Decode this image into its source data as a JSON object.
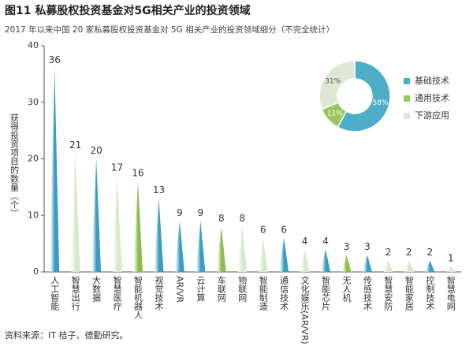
{
  "chart_data": [
    {
      "type": "bar",
      "title": "图11 私募股权投资基金对5G相关产业的投资领域",
      "subtitle": "2017 年以来中国 20 家私募股权投资基金对 5G 相关产业的投资领域细分（不完全统计）",
      "y_label": "获得投资项目的数量（个）",
      "source": "资料来源：IT 桔子、德勤研究。",
      "categories": [
        "人工智能",
        "智慧出行",
        "大数据",
        "智慧医疗",
        "智能机器人",
        "视觉技术",
        "AR/VR",
        "云计算",
        "车联网",
        "物联网",
        "智能制造",
        "通信技术",
        "文化娱乐(AR/VR)",
        "智能芯片",
        "无人机",
        "传感技术",
        "智慧安防",
        "智能家居",
        "控制技术",
        "智慧电网"
      ],
      "values": [
        36,
        21,
        20,
        17,
        16,
        13,
        9,
        9,
        8,
        8,
        6,
        6,
        4,
        4,
        3,
        3,
        2,
        2,
        2,
        1
      ],
      "colors": [
        "#3a9dc0",
        "#d9e8cc",
        "#3a9dc0",
        "#d9e8cc",
        "#8dbb4e",
        "#3a9dc0",
        "#3a9dc0",
        "#3a9dc0",
        "#8dbb4e",
        "#d9e8cc",
        "#d9e8cc",
        "#3a9dc0",
        "#d9e8cc",
        "#3a9dc0",
        "#8dbb4e",
        "#3a9dc0",
        "#d9e8cc",
        "#d9e8cc",
        "#3a9dc0",
        "#d9e8cc"
      ],
      "ylim": [
        0,
        40
      ],
      "yticks": [
        0,
        10,
        20,
        30,
        40
      ]
    },
    {
      "type": "pie",
      "categories": [
        "基础技术",
        "通用技术",
        "下游应用"
      ],
      "values": [
        58,
        11,
        31
      ],
      "value_labels": [
        "58%",
        "11%",
        "31%"
      ],
      "colors": [
        "#4eadc9",
        "#9cc45e",
        "#dde9d2"
      ]
    }
  ]
}
